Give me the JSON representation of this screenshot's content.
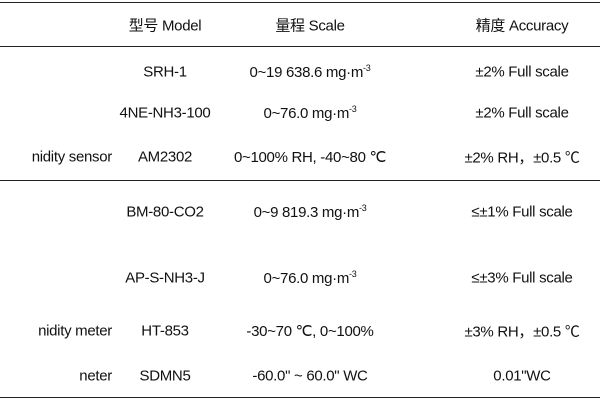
{
  "table": {
    "header": [
      "型号 Model",
      "量程 Scale",
      "精度 Accuracy"
    ],
    "rows": [
      {
        "model": "SRH-1",
        "scale": "0~19 638.6 mg·m",
        "scale_sup": "-3",
        "accuracy": "±2% Full scale"
      },
      {
        "model": "4NE-NH3-100",
        "scale": "0~76.0 mg·m",
        "scale_sup": "-3",
        "accuracy": "±2% Full scale"
      },
      {
        "group": "nidity sensor",
        "model": "AM2302",
        "scale": "0~100% RH, -40~80 ℃",
        "accuracy": "±2% RH，±0.5 ℃"
      },
      {
        "model": "BM-80-CO2",
        "scale": "0~9 819.3 mg·m",
        "scale_sup": "-3",
        "accuracy": "≤±1% Full scale"
      },
      {
        "model": "AP-S-NH3-J",
        "scale": "0~76.0 mg·m",
        "scale_sup": "-3",
        "accuracy": "≤±3% Full scale"
      },
      {
        "group": "nidity meter",
        "model": "HT-853",
        "scale": "-30~70 ℃, 0~100%",
        "accuracy": "±3% RH，±0.5 ℃"
      },
      {
        "group": "neter",
        "model": "SDMN5",
        "scale": "-60.0\" ~ 60.0\" WC",
        "accuracy": "0.01\"WC"
      }
    ]
  }
}
